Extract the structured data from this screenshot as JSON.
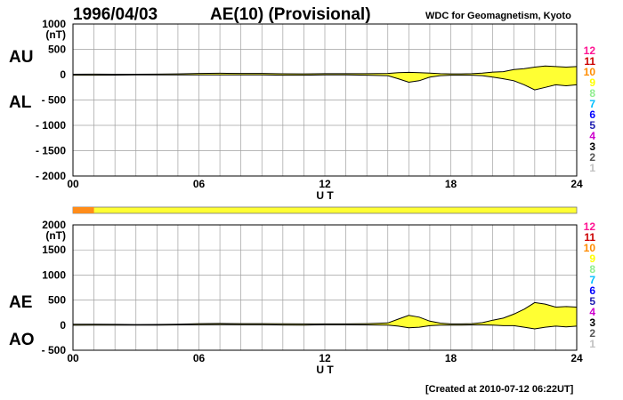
{
  "header": {
    "date": "1996/04/03",
    "title": "AE(10) (Provisional)",
    "source": "WDC for Geomagnetism, Kyoto"
  },
  "footer": {
    "created": "[Created at 2010-07-12 06:22UT]"
  },
  "level_legend": {
    "labels": [
      "12",
      "11",
      "10",
      "9",
      "8",
      "7",
      "6",
      "5",
      "4",
      "3",
      "2",
      "1"
    ],
    "colors": [
      "#ff1493",
      "#cc0000",
      "#ff8c00",
      "#ffff00",
      "#90ee90",
      "#00bfff",
      "#0000ff",
      "#1c1cb0",
      "#cc00cc",
      "#000000",
      "#555555",
      "#c0c0c0"
    ]
  },
  "colors": {
    "fill": "#ffff33",
    "line": "#000000",
    "grid": "#a0a0a0",
    "flag_early": "#ff8c1a",
    "flag_main": "#ffff33"
  },
  "chart_data": [
    {
      "type": "area",
      "panel": "AU/AL",
      "left_labels": [
        "AU",
        "AL"
      ],
      "ylabel": "(nT)",
      "ylim": [
        -2000,
        1000
      ],
      "yticks": [
        1000,
        500,
        0,
        -500,
        -1000,
        -1500,
        -2000
      ],
      "ytick_labels": [
        "1000",
        "500",
        "0",
        "- 500",
        "- 1000",
        "- 1500",
        "- 2000"
      ],
      "xlim": [
        0,
        24
      ],
      "xticks": [
        0,
        6,
        12,
        18,
        24
      ],
      "xtick_labels": [
        "00",
        "06",
        "12",
        "18",
        "24"
      ],
      "xlabel": "U T",
      "grid": true,
      "x": [
        0,
        1,
        2,
        3,
        4,
        5,
        6,
        7,
        8,
        9,
        10,
        11,
        12,
        13,
        14,
        15,
        15.5,
        16,
        16.5,
        17,
        17.5,
        18,
        18.5,
        19,
        19.5,
        20,
        20.5,
        21,
        21.5,
        22,
        22.5,
        23,
        23.5,
        24
      ],
      "series": [
        {
          "values": [
            8,
            10,
            8,
            8,
            10,
            15,
            25,
            28,
            25,
            25,
            18,
            15,
            20,
            20,
            20,
            25,
            40,
            45,
            40,
            30,
            20,
            15,
            15,
            20,
            30,
            50,
            60,
            100,
            120,
            150,
            170,
            160,
            150,
            160
          ]
        },
        {
          "values": [
            -10,
            -10,
            -8,
            -5,
            -5,
            -5,
            -5,
            -5,
            -5,
            -5,
            -10,
            -10,
            -5,
            -5,
            -10,
            -20,
            -80,
            -150,
            -120,
            -50,
            -20,
            -10,
            -10,
            -10,
            -20,
            -50,
            -80,
            -120,
            -200,
            -300,
            -250,
            -200,
            -220,
            -200
          ]
        }
      ]
    },
    {
      "type": "area",
      "panel": "AE/AO",
      "left_labels": [
        "AE",
        "AO"
      ],
      "ylabel": "(nT)",
      "ylim": [
        -500,
        2000
      ],
      "yticks": [
        2000,
        1500,
        1000,
        500,
        0,
        -500
      ],
      "ytick_labels": [
        "2000",
        "1500",
        "1000",
        "500",
        "0",
        "- 500"
      ],
      "xlim": [
        0,
        24
      ],
      "xticks": [
        0,
        6,
        12,
        18,
        24
      ],
      "xtick_labels": [
        "00",
        "06",
        "12",
        "18",
        "24"
      ],
      "xlabel": "U T",
      "grid": true,
      "x": [
        0,
        1,
        2,
        3,
        4,
        5,
        6,
        7,
        8,
        9,
        10,
        11,
        12,
        13,
        14,
        15,
        15.5,
        16,
        16.5,
        17,
        17.5,
        18,
        18.5,
        19,
        19.5,
        20,
        20.5,
        21,
        21.5,
        22,
        22.5,
        23,
        23.5,
        24
      ],
      "series": [
        {
          "values": [
            18,
            20,
            16,
            13,
            15,
            20,
            30,
            33,
            30,
            30,
            28,
            25,
            25,
            25,
            30,
            45,
            120,
            195,
            160,
            80,
            40,
            25,
            25,
            30,
            50,
            100,
            140,
            220,
            320,
            450,
            420,
            360,
            370,
            360
          ]
        },
        {
          "values": [
            -1,
            0,
            0,
            1,
            2,
            5,
            10,
            12,
            10,
            10,
            4,
            2,
            8,
            8,
            5,
            2,
            -20,
            -52,
            -40,
            -10,
            0,
            2,
            2,
            5,
            5,
            0,
            -10,
            -10,
            -40,
            -75,
            -40,
            -20,
            -35,
            -20
          ]
        }
      ]
    }
  ]
}
